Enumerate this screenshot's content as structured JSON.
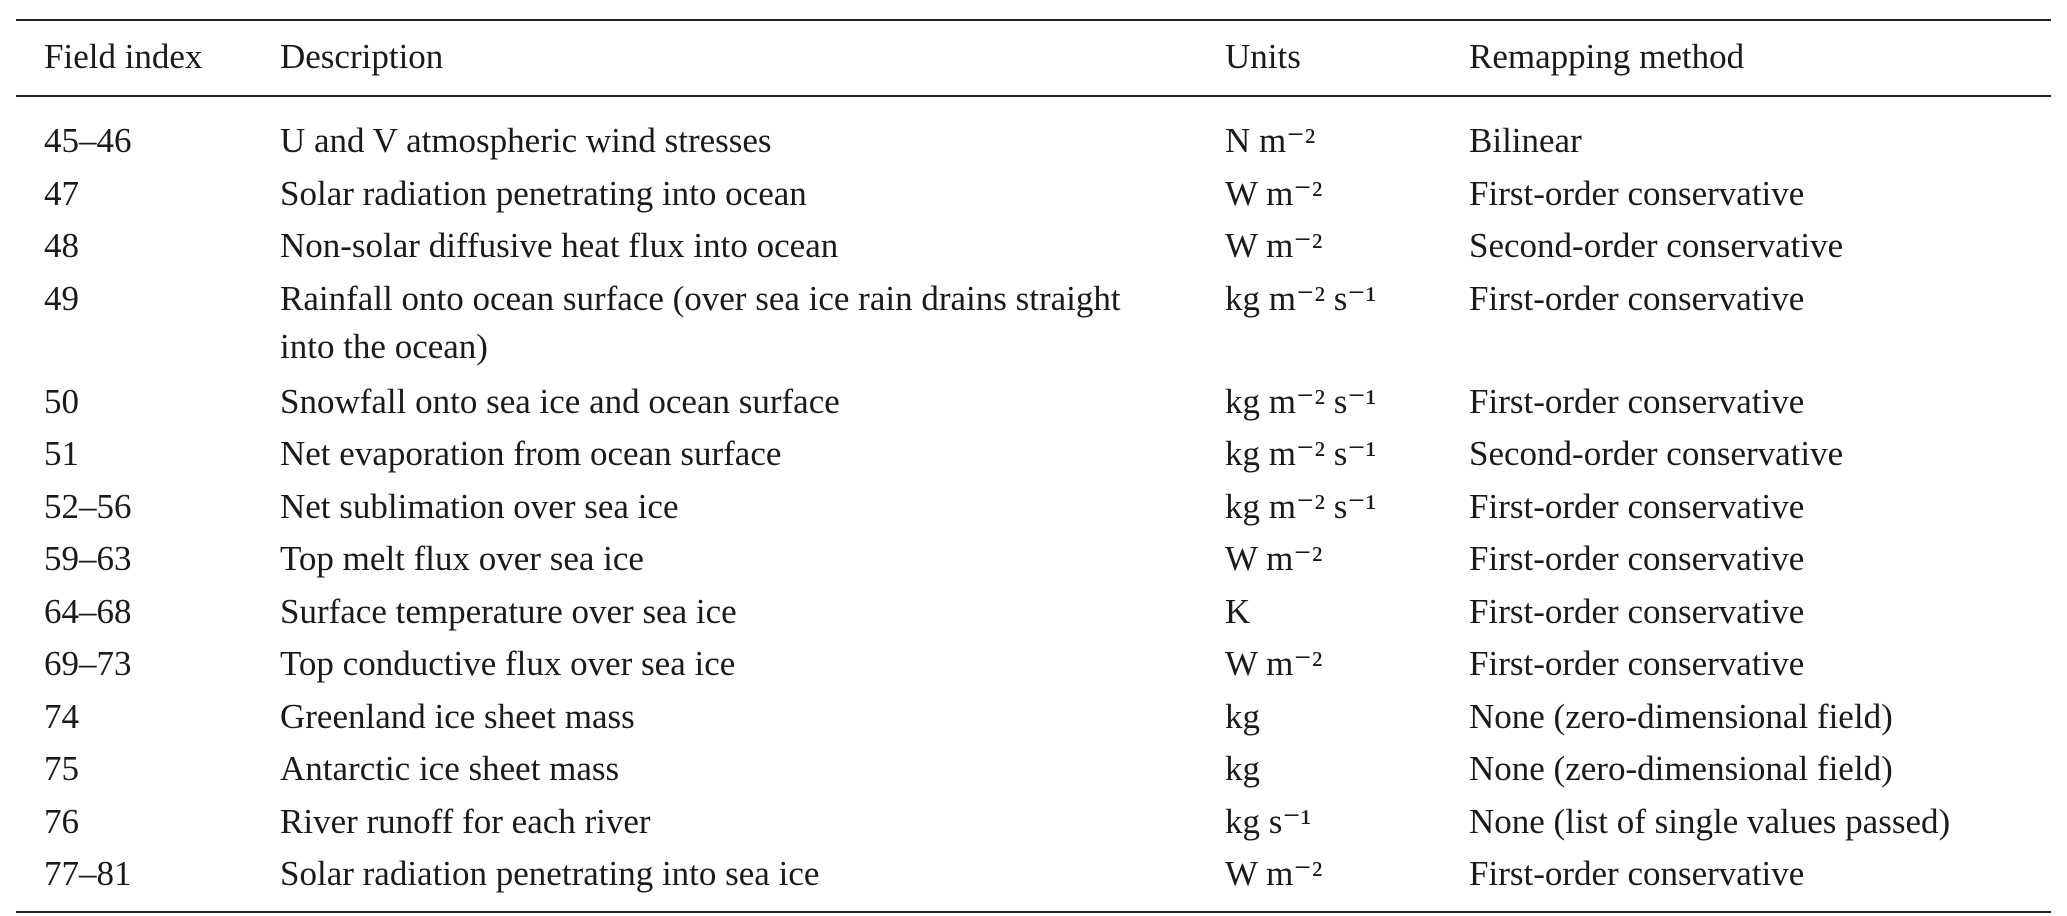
{
  "table": {
    "headers": {
      "index": "Field index",
      "description": "Description",
      "units": "Units",
      "method": "Remapping method"
    },
    "rows": [
      {
        "index": "45–46",
        "description": "U and V atmospheric wind stresses",
        "units": "N m⁻²",
        "method": "Bilinear"
      },
      {
        "index": "47",
        "description": "Solar radiation penetrating into ocean",
        "units": "W m⁻²",
        "method": "First-order conservative"
      },
      {
        "index": "48",
        "description": "Non-solar diffusive heat flux into ocean",
        "units": "W m⁻²",
        "method": "Second-order conservative"
      },
      {
        "index": "49",
        "description": "Rainfall onto ocean surface (over sea ice rain drains straight into the ocean)",
        "units": "kg m⁻² s⁻¹",
        "method": "First-order conservative"
      },
      {
        "index": "50",
        "description": "Snowfall onto sea ice and ocean surface",
        "units": "kg m⁻² s⁻¹",
        "method": "First-order conservative"
      },
      {
        "index": "51",
        "description": "Net evaporation from ocean surface",
        "units": "kg m⁻² s⁻¹",
        "method": "Second-order conservative"
      },
      {
        "index": "52–56",
        "description": "Net sublimation over sea ice",
        "units": "kg m⁻² s⁻¹",
        "method": "First-order conservative"
      },
      {
        "index": "59–63",
        "description": "Top melt flux over sea ice",
        "units": "W m⁻²",
        "method": "First-order conservative"
      },
      {
        "index": "64–68",
        "description": "Surface temperature over sea ice",
        "units": "K",
        "method": "First-order conservative"
      },
      {
        "index": "69–73",
        "description": "Top conductive flux over sea ice",
        "units": "W m⁻²",
        "method": "First-order conservative"
      },
      {
        "index": "74",
        "description": "Greenland ice sheet mass",
        "units": "kg",
        "method": "None (zero-dimensional field)"
      },
      {
        "index": "75",
        "description": "Antarctic ice sheet mass",
        "units": "kg",
        "method": "None (zero-dimensional field)"
      },
      {
        "index": "76",
        "description": "River runoff for each river",
        "units": "kg s⁻¹",
        "method": "None (list of single values passed)"
      },
      {
        "index": "77–81",
        "description": "Solar radiation penetrating into sea ice",
        "units": "W m⁻²",
        "method": "First-order conservative"
      }
    ]
  }
}
